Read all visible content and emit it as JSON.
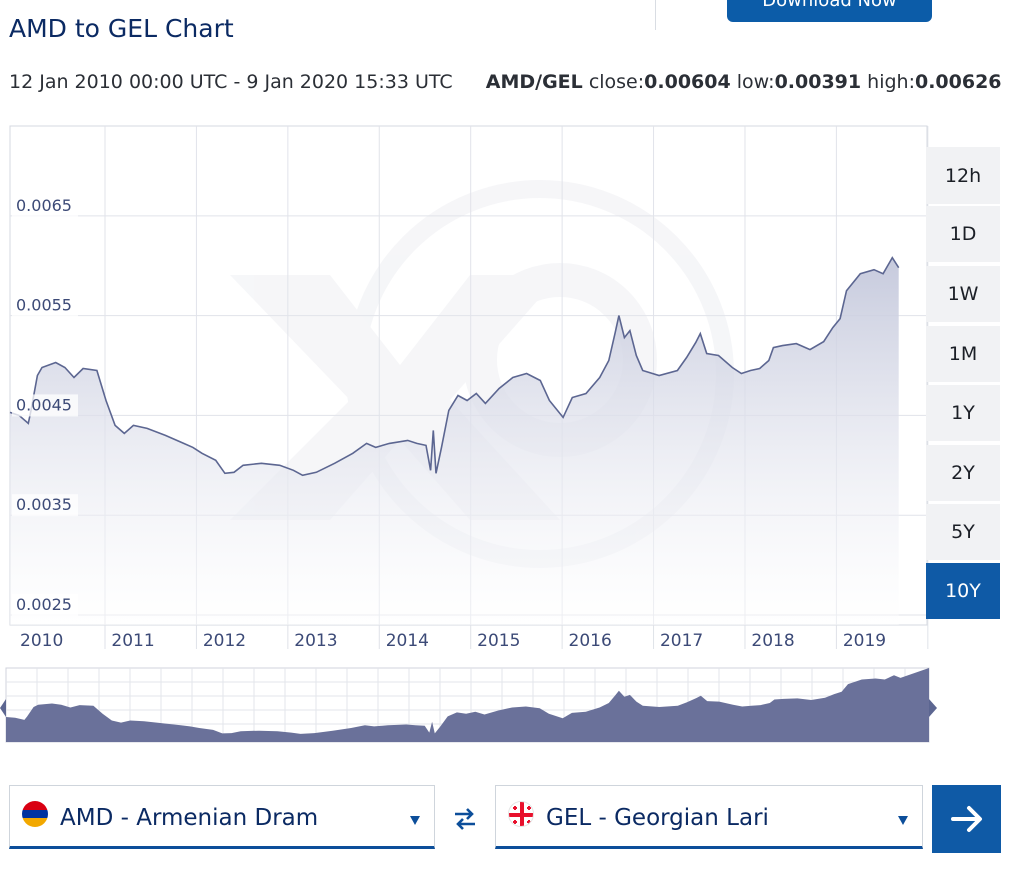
{
  "header": {
    "download_label": "Download Now",
    "title": "AMD to GEL Chart",
    "range_text": "12 Jan 2010 00:00 UTC - 9 Jan 2020 15:33 UTC",
    "pair": "AMD/GEL",
    "close_label": "close:",
    "close_value": "0.00604",
    "low_label": "low:",
    "low_value": "0.00391",
    "high_label": "high:",
    "high_value": "0.00626"
  },
  "range_buttons": [
    "12h",
    "1D",
    "1W",
    "1M",
    "1Y",
    "2Y",
    "5Y",
    "10Y"
  ],
  "active_range": "10Y",
  "chart_data": {
    "type": "area",
    "title": "AMD to GEL Chart",
    "ylim": [
      0.0024,
      0.0074
    ],
    "y_ticks": [
      0.0025,
      0.0035,
      0.0045,
      0.0055,
      0.0065
    ],
    "y_tick_labels": [
      "0.0025",
      "0.0035",
      "0.0045",
      "0.0055",
      "0.0065"
    ],
    "xlim": [
      2010.0,
      2020.03
    ],
    "x_ticks": [
      2010,
      2011,
      2012,
      2013,
      2014,
      2015,
      2016,
      2017,
      2018,
      2019
    ],
    "x_tick_labels": [
      "2010",
      "2011",
      "2012",
      "2013",
      "2014",
      "2015",
      "2016",
      "2017",
      "2018",
      "2019"
    ],
    "grid": true,
    "series": [
      {
        "name": "AMD/GEL",
        "color": "#5c6691",
        "points": [
          [
            2010.0,
            0.00453
          ],
          [
            2010.1,
            0.0045
          ],
          [
            2010.2,
            0.00442
          ],
          [
            2010.23,
            0.00455
          ],
          [
            2010.3,
            0.0049
          ],
          [
            2010.35,
            0.00498
          ],
          [
            2010.5,
            0.00503
          ],
          [
            2010.6,
            0.00498
          ],
          [
            2010.7,
            0.00488
          ],
          [
            2010.8,
            0.00497
          ],
          [
            2010.95,
            0.00495
          ],
          [
            2011.05,
            0.00465
          ],
          [
            2011.15,
            0.0044
          ],
          [
            2011.25,
            0.00432
          ],
          [
            2011.35,
            0.0044
          ],
          [
            2011.5,
            0.00437
          ],
          [
            2011.7,
            0.0043
          ],
          [
            2011.9,
            0.00422
          ],
          [
            2012.0,
            0.00418
          ],
          [
            2012.1,
            0.00412
          ],
          [
            2012.25,
            0.00405
          ],
          [
            2012.35,
            0.00392
          ],
          [
            2012.45,
            0.00393
          ],
          [
            2012.55,
            0.004
          ],
          [
            2012.75,
            0.00402
          ],
          [
            2012.95,
            0.004
          ],
          [
            2013.1,
            0.00395
          ],
          [
            2013.2,
            0.0039
          ],
          [
            2013.35,
            0.00393
          ],
          [
            2013.55,
            0.00402
          ],
          [
            2013.75,
            0.00412
          ],
          [
            2013.9,
            0.00422
          ],
          [
            2014.0,
            0.00418
          ],
          [
            2014.15,
            0.00422
          ],
          [
            2014.35,
            0.00425
          ],
          [
            2014.45,
            0.00422
          ],
          [
            2014.55,
            0.0042
          ],
          [
            2014.6,
            0.00395
          ],
          [
            2014.63,
            0.00435
          ],
          [
            2014.66,
            0.00392
          ],
          [
            2014.72,
            0.00418
          ],
          [
            2014.8,
            0.00455
          ],
          [
            2014.9,
            0.0047
          ],
          [
            2015.0,
            0.00465
          ],
          [
            2015.1,
            0.00472
          ],
          [
            2015.2,
            0.00462
          ],
          [
            2015.35,
            0.00477
          ],
          [
            2015.5,
            0.00488
          ],
          [
            2015.65,
            0.00492
          ],
          [
            2015.8,
            0.00485
          ],
          [
            2015.9,
            0.00465
          ],
          [
            2016.05,
            0.00448
          ],
          [
            2016.15,
            0.00468
          ],
          [
            2016.3,
            0.00472
          ],
          [
            2016.45,
            0.00488
          ],
          [
            2016.55,
            0.00505
          ],
          [
            2016.62,
            0.00533
          ],
          [
            2016.66,
            0.0055
          ],
          [
            2016.72,
            0.00528
          ],
          [
            2016.78,
            0.00535
          ],
          [
            2016.85,
            0.0051
          ],
          [
            2016.92,
            0.00495
          ],
          [
            2017.1,
            0.0049
          ],
          [
            2017.3,
            0.00495
          ],
          [
            2017.4,
            0.00508
          ],
          [
            2017.5,
            0.00523
          ],
          [
            2017.55,
            0.00532
          ],
          [
            2017.62,
            0.00512
          ],
          [
            2017.75,
            0.0051
          ],
          [
            2017.9,
            0.00498
          ],
          [
            2018.0,
            0.00492
          ],
          [
            2018.1,
            0.00495
          ],
          [
            2018.2,
            0.00497
          ],
          [
            2018.3,
            0.00505
          ],
          [
            2018.35,
            0.00518
          ],
          [
            2018.45,
            0.0052
          ],
          [
            2018.6,
            0.00522
          ],
          [
            2018.75,
            0.00516
          ],
          [
            2018.9,
            0.00524
          ],
          [
            2019.0,
            0.00538
          ],
          [
            2019.08,
            0.00547
          ],
          [
            2019.15,
            0.00575
          ],
          [
            2019.3,
            0.00592
          ],
          [
            2019.45,
            0.00596
          ],
          [
            2019.55,
            0.00592
          ],
          [
            2019.65,
            0.00608
          ],
          [
            2019.72,
            0.00598
          ]
        ]
      }
    ]
  },
  "converter": {
    "from_label": "AMD - Armenian Dram",
    "to_label": "GEL - Georgian Lari",
    "from_flag_colors": [
      "#d90012",
      "#0033a0",
      "#f2a800"
    ],
    "to_flag_colors": [
      "#ffffff",
      "#e8112d"
    ]
  },
  "colors": {
    "accent": "#0f5aa6",
    "title": "#0b2a63",
    "series_line": "#5c6691",
    "navigator_fill": "#6a719a"
  }
}
